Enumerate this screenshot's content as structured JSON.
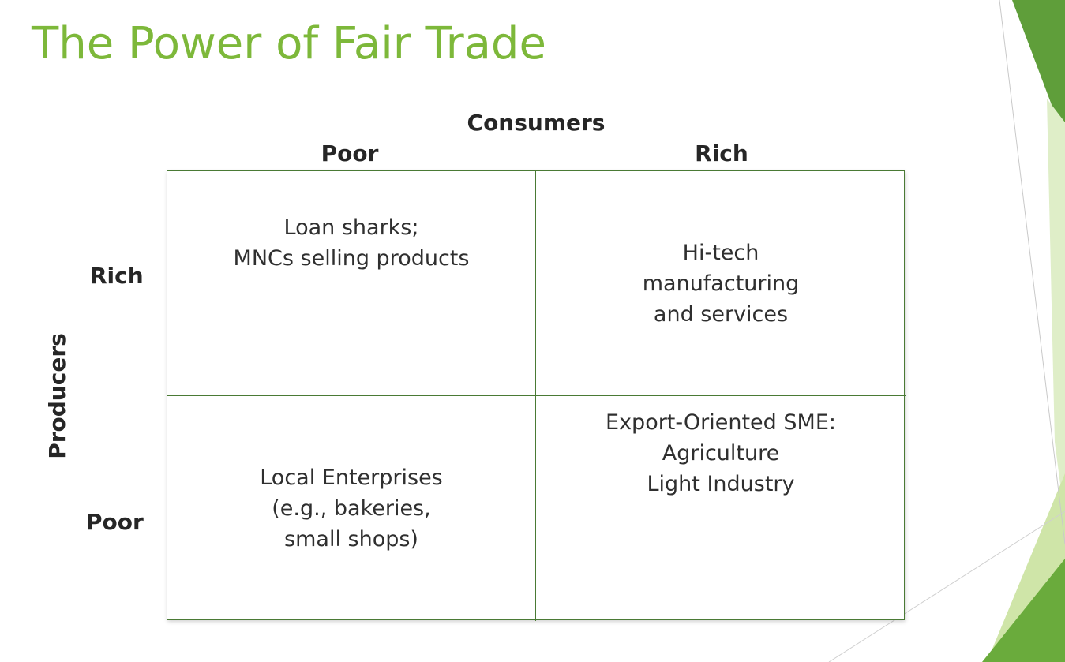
{
  "slide": {
    "title": "The Power of Fair Trade"
  },
  "matrix": {
    "column_axis_label": "Consumers",
    "row_axis_label": "Producers",
    "columns": [
      "Poor",
      "Rich"
    ],
    "rows": [
      "Rich",
      "Poor"
    ],
    "cells": {
      "rich_producers_poor_consumers": [
        "Loan sharks;",
        "MNCs selling products"
      ],
      "rich_producers_rich_consumers": [
        "Hi-tech",
        "manufacturing",
        "and services"
      ],
      "poor_producers_poor_consumers": [
        "Local Enterprises",
        "(e.g., bakeries,",
        "small shops)"
      ],
      "poor_producers_rich_consumers": [
        "Export-Oriented SME:",
        "Agriculture",
        "Light Industry"
      ]
    }
  },
  "colors": {
    "title": "#7db83a",
    "grid_lines": "#4a7a35",
    "accent_dark_green": "#5b9a3a",
    "accent_light_green": "#d6e8b8"
  }
}
